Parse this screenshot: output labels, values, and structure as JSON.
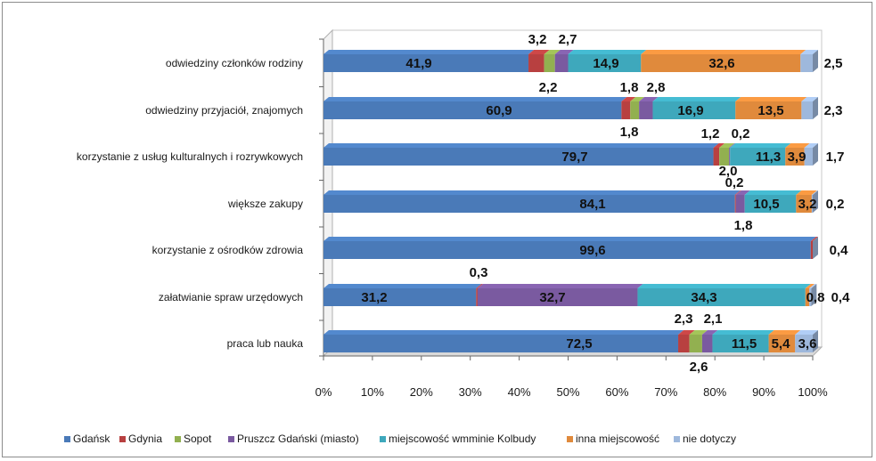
{
  "chart_data": {
    "type": "bar",
    "orientation": "horizontal",
    "stacked": "percent",
    "categories": [
      "odwiedziny członków rodziny",
      "odwiedziny przyjaciół, znajomych",
      "korzystanie z usług kulturalnych i rozrywkowych",
      "większe zakupy",
      "korzystanie z ośrodków zdrowia",
      "załatwianie spraw urzędowych",
      "praca lub nauka"
    ],
    "series": [
      {
        "name": "Gdańsk",
        "color": "#4a7ab8",
        "values": [
          41.9,
          60.9,
          79.7,
          84.1,
          99.6,
          31.2,
          72.5
        ]
      },
      {
        "name": "Gdynia",
        "color": "#b84040",
        "values": [
          3.2,
          1.8,
          1.2,
          0.2,
          0.4,
          0.3,
          2.3
        ]
      },
      {
        "name": "Sopot",
        "color": "#92b050",
        "values": [
          2.2,
          1.8,
          2.0,
          0.0,
          0.0,
          0.0,
          2.6
        ]
      },
      {
        "name": "Pruszcz Gdański (miasto)",
        "color": "#7a5aa0",
        "values": [
          2.7,
          2.8,
          0.2,
          1.8,
          0.0,
          32.7,
          2.1
        ]
      },
      {
        "name": "miejscowość wmminie Kolbudy",
        "color": "#3ea8bc",
        "values": [
          14.9,
          16.9,
          11.3,
          10.5,
          0.0,
          34.3,
          11.5
        ]
      },
      {
        "name": "inna miejscowość",
        "color": "#e08a3c",
        "values": [
          32.6,
          13.5,
          3.9,
          3.2,
          0.0,
          0.8,
          5.4
        ]
      },
      {
        "name": "nie dotyczy",
        "color": "#9eb8dc",
        "values": [
          2.5,
          2.3,
          1.7,
          0.2,
          0.0,
          0.4,
          3.6
        ]
      }
    ],
    "data_labels": [
      [
        "41,9",
        "3,2",
        "2,2",
        "2,7",
        "14,9",
        "32,6",
        "2,5"
      ],
      [
        "60,9",
        "1,8",
        "1,8",
        "2,8",
        "16,9",
        "13,5",
        "2,3"
      ],
      [
        "79,7",
        "1,2",
        "2,0",
        "0,2",
        "11,3",
        "3,9",
        "1,7"
      ],
      [
        "84,1",
        "0,2",
        "",
        "1,8",
        "10,5",
        "3,2",
        "0,2"
      ],
      [
        "99,6",
        "0,4",
        "",
        "",
        "",
        "",
        ""
      ],
      [
        "31,2",
        "0,3",
        "",
        "32,7",
        "34,3",
        "0,8",
        "0,4"
      ],
      [
        "72,5",
        "2,3",
        "2,6",
        "2,1",
        "11,5",
        "5,4",
        "3,6"
      ]
    ],
    "xticks": [
      "0%",
      "10%",
      "20%",
      "30%",
      "40%",
      "50%",
      "60%",
      "70%",
      "80%",
      "90%",
      "100%"
    ],
    "xlim": [
      0,
      100
    ],
    "legend_position": "bottom",
    "title": "",
    "xlabel": "",
    "ylabel": ""
  }
}
